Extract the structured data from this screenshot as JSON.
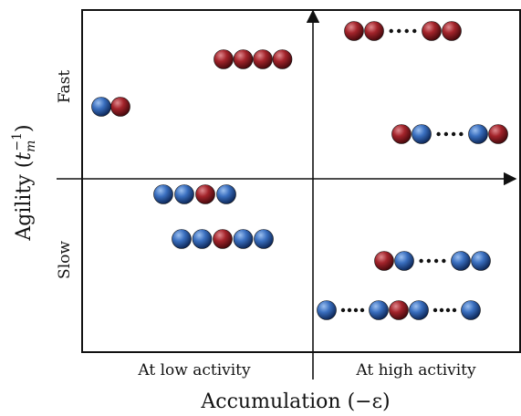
{
  "axes": {
    "x_title": "Accumulation (−ε)",
    "y_title_prefix": "Agility (",
    "y_title_var": "t",
    "y_title_sub": "m",
    "y_title_sup": "−1",
    "y_title_suffix": ")",
    "y_top": "Fast",
    "y_bottom": "Slow",
    "x_left": "At low activity",
    "x_right": "At high activity"
  },
  "colors": {
    "blue": "#3a6fbf",
    "red": "#a3242b",
    "frame": "#111111"
  },
  "chains": [
    {
      "name": "chain-fast-low-dimer",
      "beads": [
        "blue",
        "red"
      ],
      "dotted": false
    },
    {
      "name": "chain-fast-low-red-tetramer",
      "beads": [
        "red",
        "red",
        "red",
        "red"
      ],
      "dotted": false
    },
    {
      "name": "chain-slow-low-tetramer",
      "beads": [
        "blue",
        "blue",
        "red",
        "blue"
      ],
      "dotted": false
    },
    {
      "name": "chain-slow-low-pentamer",
      "beads": [
        "blue",
        "blue",
        "red",
        "blue",
        "blue"
      ],
      "dotted": false
    },
    {
      "name": "chain-fast-high-red-polymer",
      "beads": [
        "red",
        "red",
        "red",
        "red"
      ],
      "dotted": true
    },
    {
      "name": "chain-fast-high-mixed-polymer",
      "beads": [
        "red",
        "blue",
        "blue",
        "red"
      ],
      "dotted": true
    },
    {
      "name": "chain-slow-high-mixed-polymer",
      "beads": [
        "red",
        "blue",
        "blue",
        "blue"
      ],
      "dotted": true
    },
    {
      "name": "chain-slow-high-long-polymer",
      "beads": [
        "blue",
        "blue",
        "red",
        "blue",
        "blue"
      ],
      "dotted": true
    }
  ]
}
